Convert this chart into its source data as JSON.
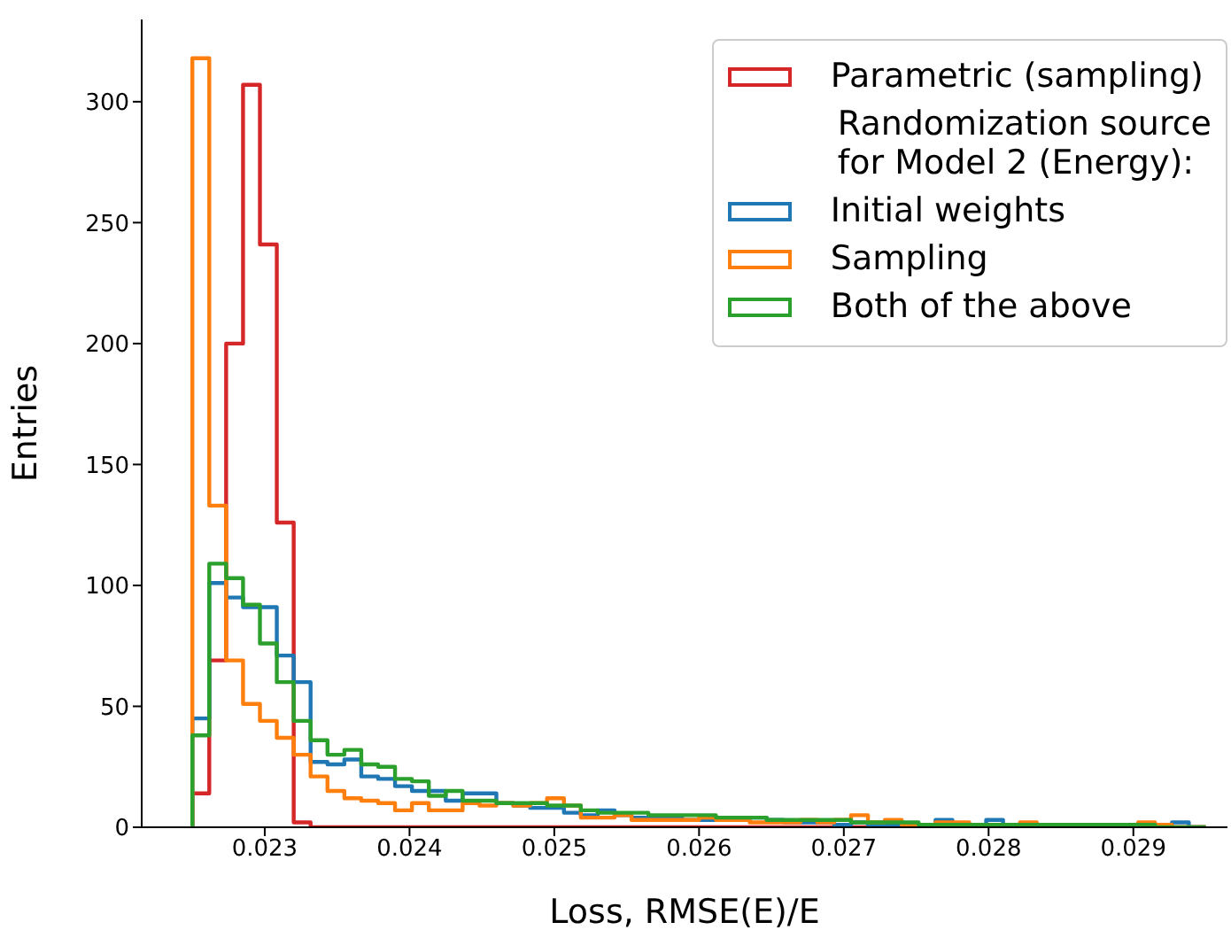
{
  "chart_data": {
    "type": "histogram",
    "xlabel": "Loss, RMSE(E)/E",
    "ylabel": "Entries",
    "bins": [
      0.0225,
      0.0226167,
      0.0227333,
      0.02285,
      0.0229667,
      0.0230833,
      0.0232,
      0.0233167,
      0.0234333,
      0.02355,
      0.0236667,
      0.0237833,
      0.0239,
      0.0240167,
      0.0241333,
      0.02425,
      0.0243667,
      0.0244833,
      0.0246,
      0.0247167,
      0.0248333,
      0.02495,
      0.0250667,
      0.0251833,
      0.0253,
      0.0254167,
      0.0255333,
      0.02565,
      0.0257667,
      0.0258833,
      0.026,
      0.0261167,
      0.0262333,
      0.02635,
      0.0264667,
      0.0265833,
      0.0267,
      0.0268167,
      0.0269333,
      0.02705,
      0.0271667,
      0.0272833,
      0.0274,
      0.0275167,
      0.0276333,
      0.02775,
      0.0278667,
      0.0279833,
      0.0281,
      0.0282167,
      0.0283333,
      0.02845,
      0.0285667,
      0.0286833,
      0.0288,
      0.0289167,
      0.0290333,
      0.02915,
      0.0292667,
      0.0293833,
      0.0295
    ],
    "series": [
      {
        "name": "Parametric (sampling)",
        "color": "#d62728",
        "values": [
          14,
          69,
          200,
          307,
          241,
          126,
          2,
          0,
          0,
          0,
          0,
          0,
          0,
          0,
          0,
          0,
          0,
          0,
          0,
          0,
          0,
          0,
          0,
          0,
          0,
          0,
          0,
          0,
          0,
          0,
          0,
          0,
          0,
          0,
          0,
          0,
          0,
          0,
          0,
          0,
          0,
          0,
          0,
          0,
          0,
          0,
          0,
          0,
          0,
          0,
          0,
          0,
          0,
          0,
          0,
          0,
          0,
          0,
          0,
          0
        ]
      },
      {
        "name": "Initial weights",
        "color": "#1f77b4",
        "values": [
          45,
          101,
          95,
          91,
          91,
          71,
          60,
          27,
          26,
          28,
          21,
          20,
          17,
          15,
          15,
          11,
          14,
          14,
          10,
          9,
          8,
          8,
          6,
          5,
          7,
          5,
          4,
          4,
          4,
          3,
          3,
          3,
          3,
          4,
          3,
          2,
          2,
          2,
          1,
          2,
          1,
          1,
          1,
          1,
          3,
          1,
          1,
          3,
          1,
          1,
          1,
          1,
          1,
          1,
          1,
          1,
          1,
          1,
          2,
          0
        ]
      },
      {
        "name": "Sampling",
        "color": "#ff7f0e",
        "values": [
          318,
          133,
          69,
          51,
          44,
          37,
          30,
          21,
          15,
          12,
          11,
          10,
          7,
          10,
          7,
          7,
          10,
          9,
          10,
          9,
          10,
          12,
          9,
          4,
          4,
          5,
          3,
          3,
          3,
          3,
          4,
          3,
          3,
          2,
          2,
          2,
          3,
          2,
          3,
          5,
          2,
          3,
          1,
          1,
          2,
          2,
          1,
          1,
          1,
          2,
          1,
          1,
          1,
          1,
          1,
          1,
          2,
          1,
          0,
          0
        ]
      },
      {
        "name": "Both of the above",
        "color": "#2ca02c",
        "values": [
          38,
          109,
          103,
          92,
          76,
          60,
          44,
          36,
          30,
          32,
          26,
          25,
          20,
          19,
          13,
          15,
          11,
          11,
          10,
          10,
          10,
          9,
          9,
          7,
          6,
          6,
          6,
          5,
          5,
          5,
          5,
          4,
          4,
          4,
          3,
          3,
          3,
          3,
          3,
          2,
          2,
          2,
          2,
          1,
          1,
          1,
          1,
          1,
          1,
          1,
          1,
          1,
          1,
          1,
          1,
          1,
          1,
          0,
          0,
          0
        ]
      }
    ],
    "annotations": [
      "Randomization source\nfor Model 2 (Energy):"
    ],
    "xlim": [
      0.02215,
      0.02965
    ],
    "xticks": [
      0.023,
      0.024,
      0.025,
      0.026,
      0.027,
      0.028,
      0.029
    ],
    "ylim": [
      0,
      334
    ],
    "yticks": [
      0,
      50,
      100,
      150,
      200,
      250,
      300
    ],
    "legend": "top right",
    "grid": false
  }
}
